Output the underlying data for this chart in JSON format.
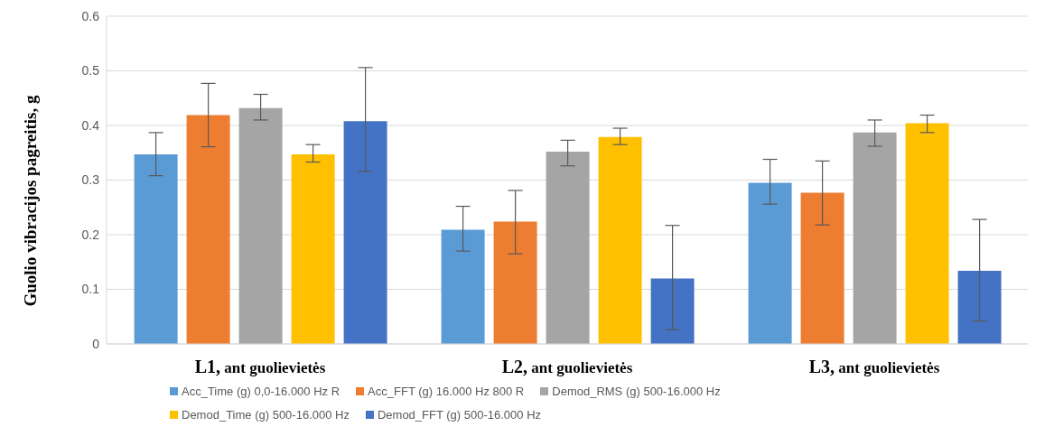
{
  "chart_data": {
    "type": "bar",
    "ylabel": "Guolio vibracijos pagreitis, g",
    "categories": [
      "L1, ant guolievietės",
      "L2, ant guolievietės",
      "L3, ant guolievietės"
    ],
    "series": [
      {
        "name": "Acc_Time (g) 0,0-16.000 Hz R",
        "color": "#5b9bd5",
        "values": [
          0.347,
          0.209,
          0.295
        ],
        "errors": [
          [
            0.308,
            0.387
          ],
          [
            0.17,
            0.252
          ],
          [
            0.256,
            0.338
          ]
        ]
      },
      {
        "name": "Acc_FFT (g) 16.000 Hz 800 R",
        "color": "#ed7d31",
        "values": [
          0.419,
          0.224,
          0.277
        ],
        "errors": [
          [
            0.361,
            0.477
          ],
          [
            0.165,
            0.281
          ],
          [
            0.218,
            0.335
          ]
        ]
      },
      {
        "name": "Demod_RMS (g) 500-16.000 Hz",
        "color": "#a5a5a5",
        "values": [
          0.432,
          0.352,
          0.387
        ],
        "errors": [
          [
            0.41,
            0.457
          ],
          [
            0.326,
            0.373
          ],
          [
            0.362,
            0.41
          ]
        ]
      },
      {
        "name": "Demod_Time (g) 500-16.000 Hz",
        "color": "#ffc000",
        "values": [
          0.347,
          0.379,
          0.404
        ],
        "errors": [
          [
            0.333,
            0.365
          ],
          [
            0.365,
            0.395
          ],
          [
            0.387,
            0.419
          ]
        ]
      },
      {
        "name": "Demod_FFT (g) 500-16.000 Hz",
        "color": "#4472c4",
        "values": [
          0.408,
          0.12,
          0.134
        ],
        "errors": [
          [
            0.316,
            0.506
          ],
          [
            0.026,
            0.217
          ],
          [
            0.042,
            0.228
          ]
        ]
      }
    ],
    "ylim": [
      0,
      0.6
    ],
    "yticks": [
      0,
      0.1,
      0.2,
      0.3,
      0.4,
      0.5,
      0.6
    ],
    "grid": "y",
    "legend": "bottom"
  }
}
